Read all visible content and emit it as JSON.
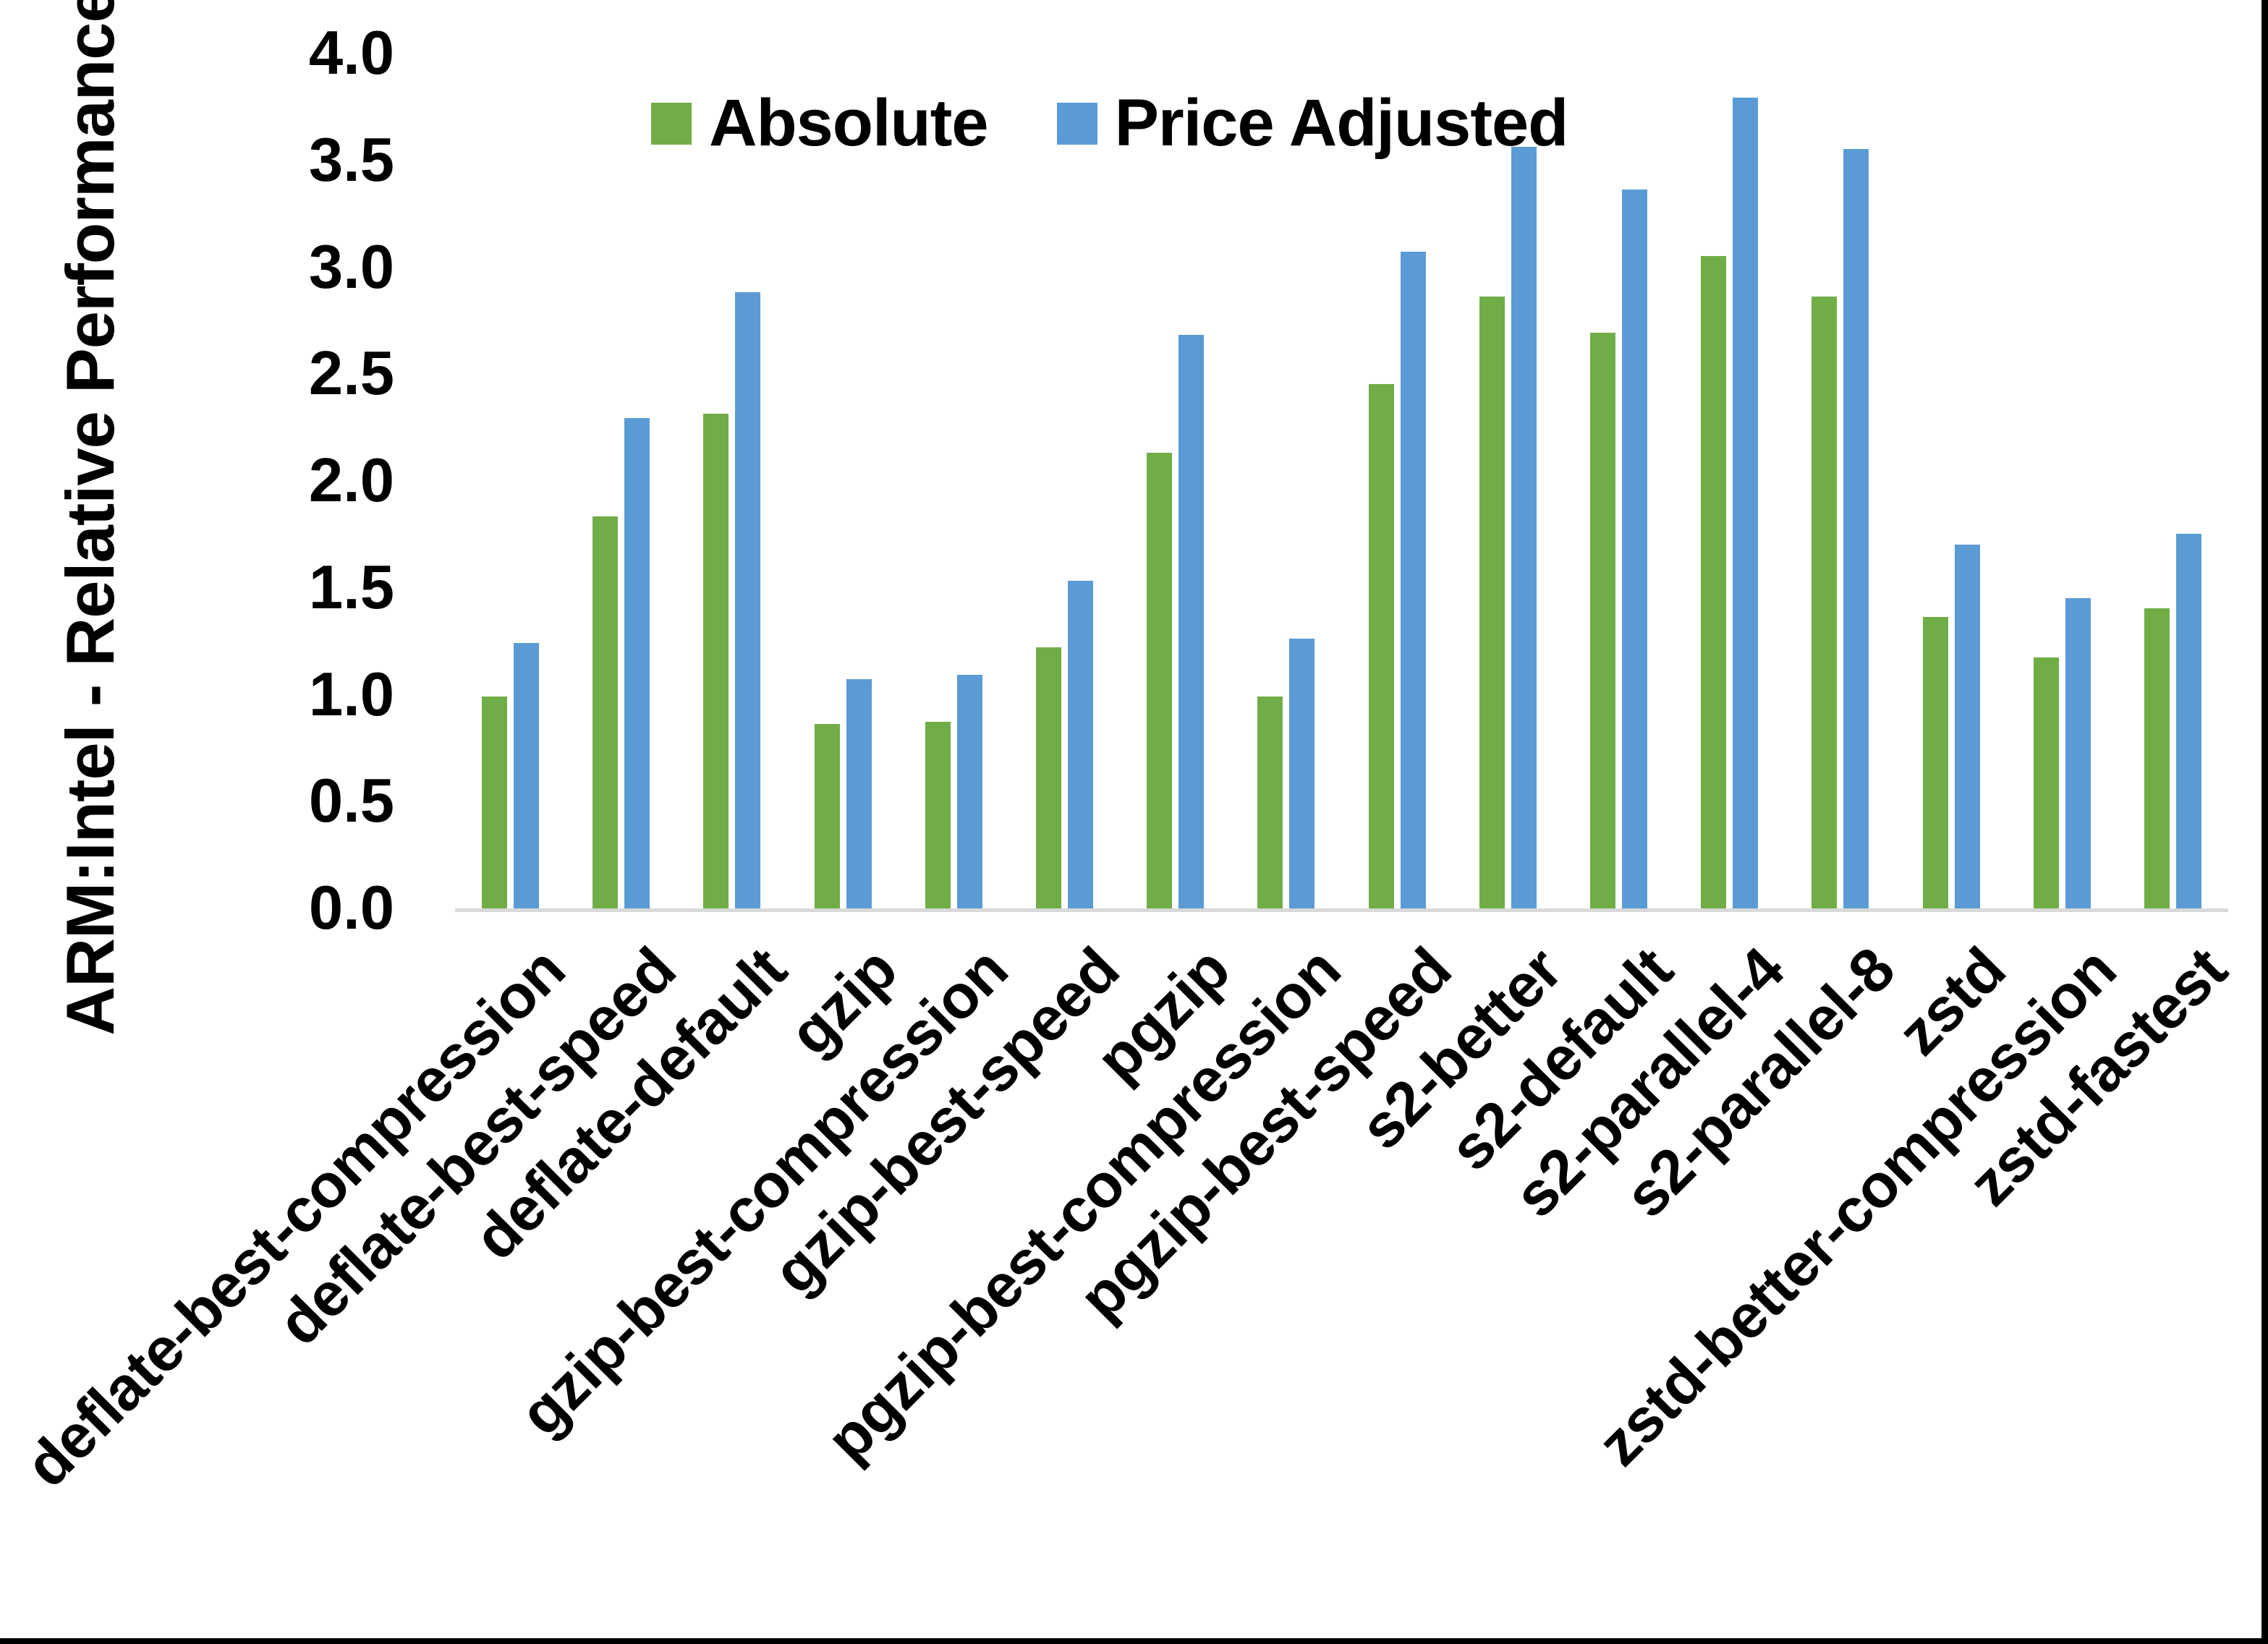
{
  "page": {
    "background": "#ffffff",
    "border_color": "#000000"
  },
  "chart_data": {
    "type": "bar",
    "title": "",
    "xlabel": "",
    "ylabel": "ARM:Intel - Relative Performance",
    "ylim": [
      0.0,
      4.0
    ],
    "ytick_step": 0.5,
    "ytick_labels": [
      "0.0",
      "0.5",
      "1.0",
      "1.5",
      "2.0",
      "2.5",
      "3.0",
      "3.5",
      "4.0"
    ],
    "grid": false,
    "legend_position": "top-center",
    "axis_line_color": "#d9d9d9",
    "text_color": "#000000",
    "categories": [
      "deflate-best-compression",
      "deflate-best-speed",
      "deflate-default",
      "gzip",
      "gzip-best-compression",
      "gzip-best-speed",
      "pgzip",
      "pgzip-best-compression",
      "pgzip-best-speed",
      "s2-better",
      "s2-default",
      "s2-parallel-4",
      "s2-parallel-8",
      "zstd",
      "zstd-better-compression",
      "zstd-fastest"
    ],
    "series": [
      {
        "name": "Absolute",
        "color": "#70ad47",
        "values": [
          1.0,
          1.84,
          2.32,
          0.87,
          0.88,
          1.23,
          2.14,
          1.0,
          2.46,
          2.87,
          2.7,
          3.06,
          2.87,
          1.37,
          1.18,
          1.41
        ]
      },
      {
        "name": "Price Adjusted",
        "color": "#5b9bd5",
        "values": [
          1.25,
          2.3,
          2.89,
          1.08,
          1.1,
          1.54,
          2.69,
          1.27,
          3.08,
          3.57,
          3.37,
          3.8,
          3.56,
          1.71,
          1.46,
          1.76
        ]
      }
    ]
  }
}
